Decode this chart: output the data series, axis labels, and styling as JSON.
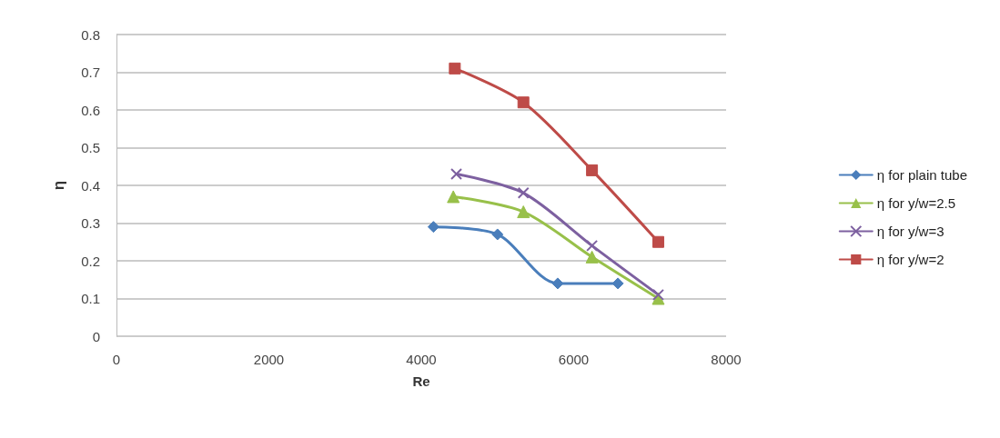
{
  "chart_data": {
    "type": "line",
    "xlabel": "Re",
    "ylabel": "η",
    "xlim": [
      0,
      8000
    ],
    "xticks": [
      0,
      2000,
      4000,
      6000,
      8000
    ],
    "ylim": [
      0,
      0.8
    ],
    "yticks": [
      0,
      0.1,
      0.2,
      0.3,
      0.4,
      0.5,
      0.6,
      0.7,
      0.8
    ],
    "grid": "y",
    "legend": "right",
    "line_style": "solid",
    "series": [
      {
        "name": "η for plain tube",
        "color": "#4a7ebb",
        "marker": "diamond",
        "x": [
          4160,
          5000,
          5790,
          6580
        ],
        "values": [
          0.29,
          0.27,
          0.14,
          0.14
        ]
      },
      {
        "name": "η for y/w=2.5",
        "color": "#98c04a",
        "marker": "triangle",
        "x": [
          4420,
          5340,
          6240,
          7110
        ],
        "values": [
          0.37,
          0.33,
          0.21,
          0.1
        ]
      },
      {
        "name": "η for y/w=3",
        "color": "#7d60a0",
        "marker": "cross",
        "x": [
          4460,
          5340,
          6240,
          7110
        ],
        "values": [
          0.43,
          0.38,
          0.24,
          0.11
        ]
      },
      {
        "name": "η for y/w=2",
        "color": "#be4b48",
        "marker": "square",
        "x": [
          4440,
          5340,
          6240,
          7110
        ],
        "values": [
          0.71,
          0.62,
          0.44,
          0.25
        ]
      }
    ]
  }
}
